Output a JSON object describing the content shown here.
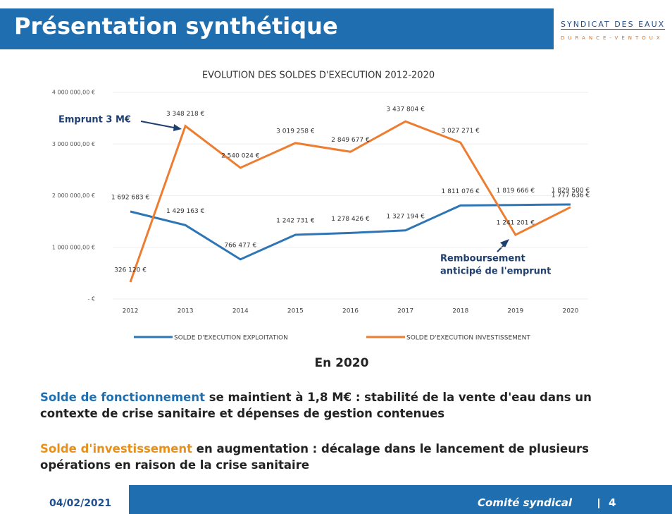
{
  "header": {
    "title": "Présentation synthétique",
    "logo_top": "SYNDICAT DES EAUX",
    "logo_bottom": "DURANCE-VENTOUX"
  },
  "chart_data": {
    "type": "line",
    "title": "EVOLUTION DES SOLDES D'EXECUTION 2012-2020",
    "categories": [
      "2012",
      "2013",
      "2014",
      "2015",
      "2016",
      "2017",
      "2018",
      "2019",
      "2020"
    ],
    "series": [
      {
        "name": "SOLDE D'EXECUTION EXPLOITATION",
        "color": "#2e75b6",
        "values": [
          1692683,
          1429163,
          766477,
          1242731,
          1278426,
          1327194,
          1811076,
          1819666,
          1829500
        ],
        "value_labels": [
          "1 692 683 €",
          "1 429 163 €",
          "766 477 €",
          "1 242 731 €",
          "1 278 426 €",
          "1 327 194 €",
          "1 811 076 €",
          "1 819 666 €",
          "1 829 500 €"
        ]
      },
      {
        "name": "SOLDE D'EXECUTION INVESTISSEMENT",
        "color": "#ed7d31",
        "values": [
          326120,
          3348218,
          2540024,
          3019258,
          2849677,
          3437804,
          3027271,
          1241201,
          1777636
        ],
        "value_labels": [
          "326 120 €",
          "3 348 218 €",
          "2 540 024 €",
          "3 019 258 €",
          "2 849 677 €",
          "3 437 804 €",
          "3 027 271 €",
          "1 241 201 €",
          "1 777 636 €"
        ]
      }
    ],
    "ylim": [
      0,
      4000000
    ],
    "yticks": [
      {
        "value": 0,
        "label": "- €"
      },
      {
        "value": 1000000,
        "label": "1 000 000,00 €"
      },
      {
        "value": 2000000,
        "label": "2 000 000,00 €"
      },
      {
        "value": 3000000,
        "label": "3 000 000,00 €"
      },
      {
        "value": 4000000,
        "label": "4 000 000,00 €"
      }
    ],
    "grid": true,
    "legend": "bottom",
    "annotations": [
      "Emprunt 3 M€",
      "Remboursement",
      "anticipé de l'emprunt"
    ]
  },
  "body": {
    "heading": "En 2020",
    "paragraphs": [
      {
        "highlight": "Solde de fonctionnement",
        "text": " se maintient à 1,8 M€ : stabilité de la vente d'eau dans un contexte de crise sanitaire et dépenses de gestion contenues"
      },
      {
        "highlight": "Solde d'investissement",
        "text": " en augmentation : décalage dans le lancement de plusieurs opérations en raison de la crise sanitaire"
      }
    ]
  },
  "footer": {
    "date": "04/02/2021",
    "label": "Comité syndical",
    "page": "4"
  }
}
